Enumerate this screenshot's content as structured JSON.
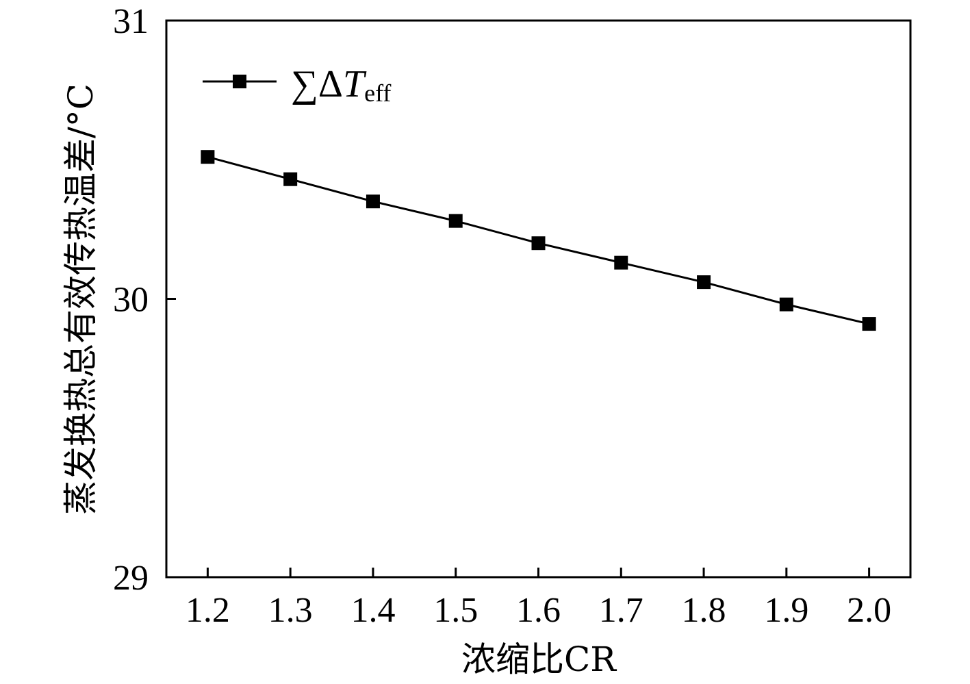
{
  "chart_data": {
    "type": "line",
    "title": "",
    "xlabel": "浓缩比CR",
    "ylabel": "蒸发换热总有效传热温差/°C",
    "x": [
      1.2,
      1.3,
      1.4,
      1.5,
      1.6,
      1.7,
      1.8,
      1.9,
      2.0
    ],
    "xticks": [
      "1.2",
      "1.3",
      "1.4",
      "1.5",
      "1.6",
      "1.7",
      "1.8",
      "1.9",
      "2.0"
    ],
    "yticks": [
      "29",
      "30",
      "31"
    ],
    "xlim": [
      1.15,
      2.05
    ],
    "ylim": [
      29,
      31
    ],
    "grid": false,
    "legend_position": "top-left",
    "series": [
      {
        "name": "∑ΔTeff",
        "name_parts": {
          "prefix": "∑Δ",
          "symbol": "T",
          "subscript": "eff"
        },
        "marker": "square",
        "color": "#000000",
        "values": [
          30.51,
          30.43,
          30.35,
          30.28,
          30.2,
          30.13,
          30.06,
          29.98,
          29.91
        ]
      }
    ]
  }
}
